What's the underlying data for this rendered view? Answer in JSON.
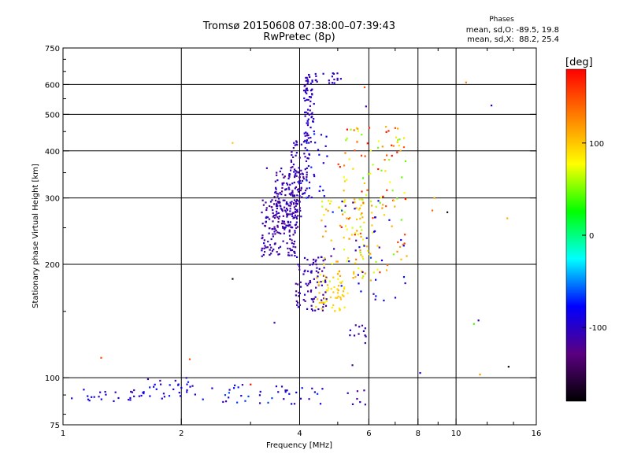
{
  "header": {
    "title": "Tromsø 20150608 07:38:00–07:39:43",
    "subtitle": "RwPretec (8p)",
    "phases_label": "Phases",
    "phase_o": "mean, sd,O: -89.5, 19.8",
    "phase_x": "mean, sd,X:  88.2, 25.4"
  },
  "chart_data": {
    "type": "scatter",
    "xlabel": "Frequency [MHz]",
    "ylabel": "Stationary phase Virtual Height [km]",
    "x_scale": "log",
    "y_scale": "log",
    "xlim": [
      1,
      16
    ],
    "ylim": [
      75,
      750
    ],
    "x_ticks": [
      1,
      2,
      4,
      6,
      8,
      10,
      16
    ],
    "x_tick_labels": [
      "1",
      "2",
      "4",
      "6",
      "8",
      "10",
      "16"
    ],
    "x_grid": [
      2,
      4,
      6,
      8,
      10
    ],
    "y_ticks": [
      75,
      100,
      200,
      300,
      400,
      500,
      600,
      750
    ],
    "y_tick_labels": [
      "75",
      "100",
      "200",
      "300",
      "400",
      "500",
      "600",
      "750"
    ],
    "y_grid": [
      100,
      200,
      300,
      400,
      500,
      600
    ],
    "grid": true,
    "colorbar": {
      "unit": "[deg]",
      "range": [
        -180,
        180
      ],
      "ticks": [
        100,
        0,
        -100
      ],
      "tick_labels": [
        "100",
        "0",
        "-100"
      ],
      "colors": [
        "#000000",
        "#5a0080",
        "#0000ff",
        "#00ffff",
        "#00ff00",
        "#ffff00",
        "#ff8000",
        "#ff0000"
      ]
    },
    "clusters": [
      {
        "x": [
          1.05,
          1.6
        ],
        "y": [
          86,
          94
        ],
        "n": 25,
        "phase": [
          -110,
          -80
        ]
      },
      {
        "x": [
          1.6,
          2.2
        ],
        "y": [
          88,
          100
        ],
        "n": 30,
        "phase": [
          -110,
          -70
        ]
      },
      {
        "x": [
          2.2,
          4.6
        ],
        "y": [
          85,
          96
        ],
        "n": 40,
        "phase": [
          -115,
          -60
        ]
      },
      {
        "x": [
          3.2,
          3.95
        ],
        "y": [
          210,
          300
        ],
        "n": 160,
        "phase": [
          -125,
          -95
        ]
      },
      {
        "x": [
          3.45,
          4.05
        ],
        "y": [
          250,
          360
        ],
        "n": 120,
        "phase": [
          -125,
          -95
        ]
      },
      {
        "x": [
          3.8,
          4.25
        ],
        "y": [
          300,
          430
        ],
        "n": 70,
        "phase": [
          -120,
          -95
        ]
      },
      {
        "x": [
          4.1,
          4.35
        ],
        "y": [
          420,
          640
        ],
        "n": 70,
        "phase": [
          -115,
          -90
        ]
      },
      {
        "x": [
          4.3,
          5.1
        ],
        "y": [
          605,
          645
        ],
        "n": 18,
        "phase": [
          -110,
          -90
        ]
      },
      {
        "x": [
          4.1,
          4.7
        ],
        "y": [
          300,
          450
        ],
        "n": 25,
        "phase": [
          -100,
          -60
        ]
      },
      {
        "x": [
          3.9,
          4.7
        ],
        "y": [
          150,
          210
        ],
        "n": 90,
        "phase": [
          -125,
          -95
        ]
      },
      {
        "x": [
          4.4,
          5.3
        ],
        "y": [
          150,
          185
        ],
        "n": 50,
        "phase": [
          80,
          110
        ]
      },
      {
        "x": [
          4.5,
          6.2
        ],
        "y": [
          180,
          300
        ],
        "n": 80,
        "phase": [
          60,
          120
        ]
      },
      {
        "x": [
          5.0,
          7.5
        ],
        "y": [
          190,
          470
        ],
        "n": 120,
        "phase": [
          40,
          180
        ]
      },
      {
        "x": [
          5.3,
          5.9
        ],
        "y": [
          80,
          140
        ],
        "n": 20,
        "phase": [
          -120,
          -95
        ]
      },
      {
        "x": [
          4.5,
          7.5
        ],
        "y": [
          160,
          300
        ],
        "n": 40,
        "phase": [
          -120,
          -60
        ]
      }
    ],
    "points": [
      {
        "x": 1.25,
        "y": 113,
        "phase": 150
      },
      {
        "x": 2.1,
        "y": 112,
        "phase": 150
      },
      {
        "x": 2.7,
        "y": 420,
        "phase": 100
      },
      {
        "x": 2.7,
        "y": 183,
        "phase": -170
      },
      {
        "x": 3.0,
        "y": 96,
        "phase": 175
      },
      {
        "x": 3.3,
        "y": 360,
        "phase": -110
      },
      {
        "x": 3.45,
        "y": 140,
        "phase": -110
      },
      {
        "x": 5.85,
        "y": 590,
        "phase": 150
      },
      {
        "x": 5.9,
        "y": 525,
        "phase": -110
      },
      {
        "x": 7.0,
        "y": 460,
        "phase": 150
      },
      {
        "x": 8.1,
        "y": 103,
        "phase": -90
      },
      {
        "x": 8.8,
        "y": 300,
        "phase": 110
      },
      {
        "x": 8.7,
        "y": 278,
        "phase": 140
      },
      {
        "x": 9.5,
        "y": 275,
        "phase": -170
      },
      {
        "x": 10.6,
        "y": 608,
        "phase": 130
      },
      {
        "x": 11.1,
        "y": 139,
        "phase": 40
      },
      {
        "x": 11.4,
        "y": 142,
        "phase": -110
      },
      {
        "x": 11.5,
        "y": 102,
        "phase": 120
      },
      {
        "x": 12.3,
        "y": 528,
        "phase": -80
      },
      {
        "x": 13.5,
        "y": 265,
        "phase": 110
      },
      {
        "x": 13.6,
        "y": 107,
        "phase": -170
      }
    ]
  }
}
